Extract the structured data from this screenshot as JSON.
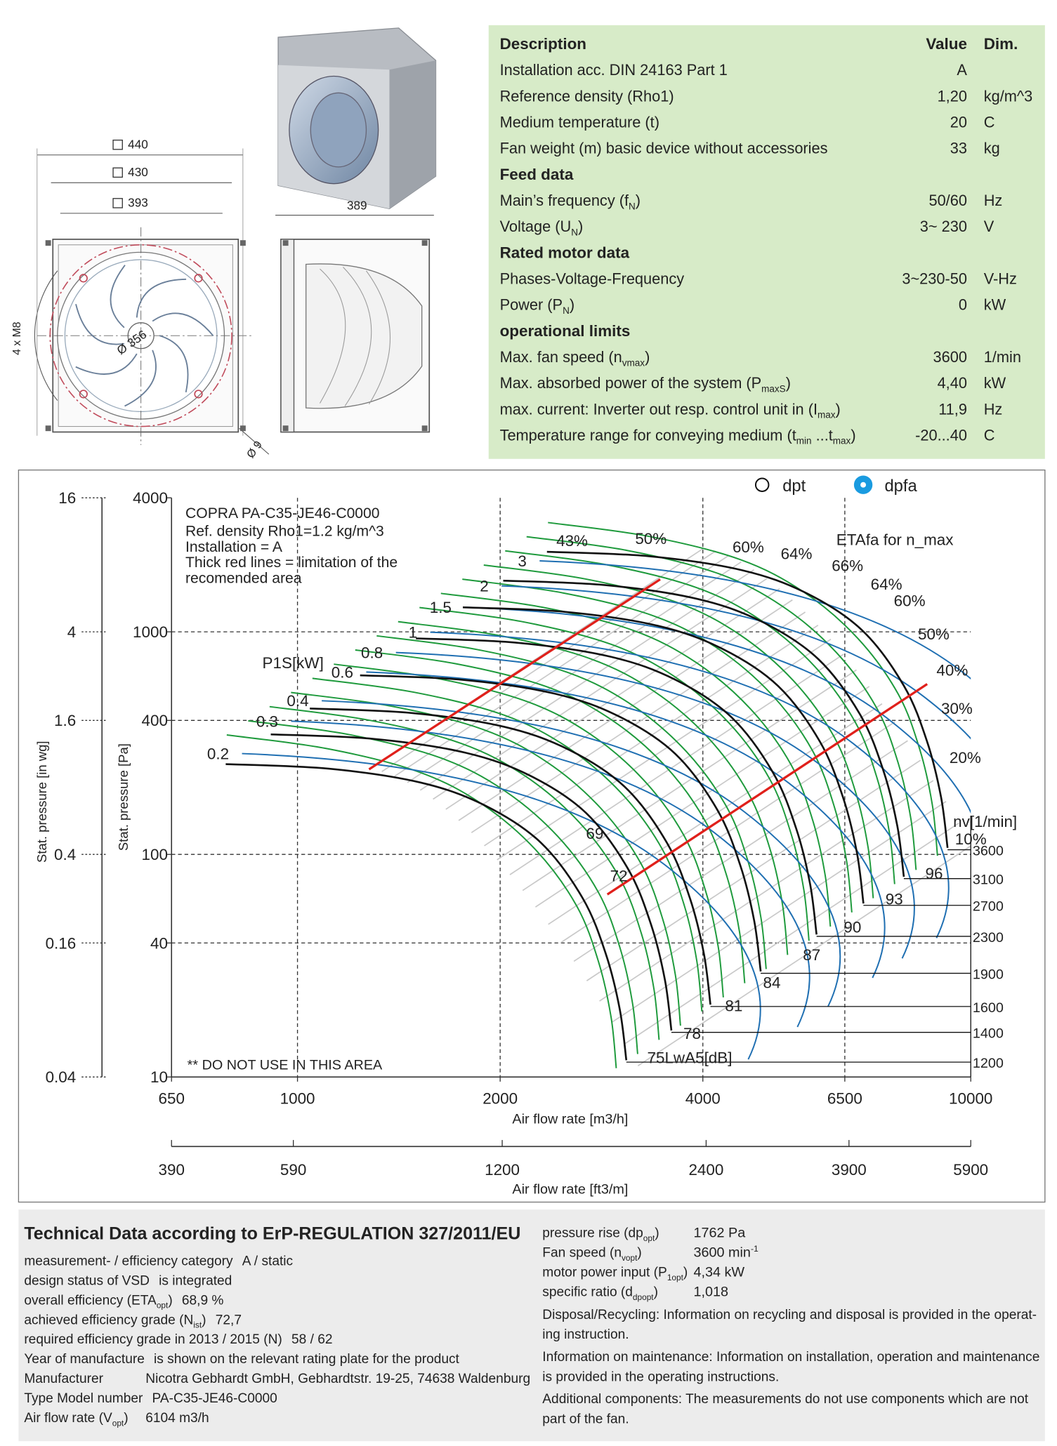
{
  "drawing": {
    "widths": [
      "440",
      "430",
      "393"
    ],
    "bore": "Ø 356",
    "thread": "4 x M8",
    "depth": "389",
    "hole": "Ø 9"
  },
  "specs": {
    "headers": [
      "Description",
      "Value",
      "Dim."
    ],
    "rows": [
      {
        "label": [
          "Installation acc. DIN 24163 Part 1"
        ],
        "value": "A"
      },
      {
        "label": [
          "Reference density (Rho1)"
        ],
        "value": "1,20",
        "dim": "kg/m^3"
      },
      {
        "label": [
          "Medium temperature (t)"
        ],
        "value": "20",
        "dim": "C"
      },
      {
        "label": [
          "Fan weight (m) basic device without accessories"
        ],
        "value": "33",
        "dim": "kg"
      },
      {
        "section": "Feed data"
      },
      {
        "label": [
          "Main’s frequency (f",
          "N",
          ")"
        ],
        "value": "50/60",
        "dim": "Hz"
      },
      {
        "label": [
          "Voltage (U",
          "N",
          ")"
        ],
        "value": "3~ 230",
        "dim": "V"
      },
      {
        "section": "Rated motor data"
      },
      {
        "label": [
          "Phases-Voltage-Frequency"
        ],
        "value": "3~230-50",
        "dim": "V-Hz"
      },
      {
        "label": [
          "Power (P",
          "N",
          ")"
        ],
        "value": "0",
        "dim": "kW"
      },
      {
        "section": "operational limits"
      },
      {
        "label": [
          "Max. fan speed (n",
          "vmax",
          ")"
        ],
        "value": "3600",
        "dim": "1/min"
      },
      {
        "label": [
          "Max. absorbed power of the system (P",
          "maxS",
          ")"
        ],
        "value": "4,40",
        "dim": "kW"
      },
      {
        "label": [
          "max. current: Inverter out resp. control unit in (I",
          "max",
          ")"
        ],
        "value": "11,9",
        "dim": "Hz"
      },
      {
        "label": [
          "Temperature range for conveying medium (t",
          "min",
          " ...t",
          "max",
          ")"
        ],
        "value": "-20...40",
        "dim": "C"
      }
    ]
  },
  "chart_data": {
    "type": "line",
    "title": "COPRA PA-C35-JE46-C0000",
    "notes": [
      "Ref. density Rho1=1.2 kg/m^3",
      "Installation = A",
      "Thick red lines = limitation of the",
      "recomended area"
    ],
    "warning": "** DO NOT USE IN THIS AREA",
    "legend": [
      "dpt",
      "dpfa"
    ],
    "xlabel": "Air flow rate [m3/h]",
    "x2label": "Air flow rate [ft3/m]",
    "ylabel": "Stat. pressure [Pa]",
    "y2label": "Stat. pressure [in wg]",
    "log_scale": true,
    "grid": true,
    "xlim": [
      650,
      10000
    ],
    "xticks": [
      650,
      1000,
      2000,
      4000,
      6500,
      10000
    ],
    "x2lim": [
      390,
      5900
    ],
    "x2ticks": [
      390,
      590,
      1200,
      2400,
      3900,
      5900
    ],
    "ylim": [
      10,
      4000
    ],
    "yticks": [
      10,
      40,
      100,
      400,
      1000,
      4000
    ],
    "y2lim": [
      0.04,
      16
    ],
    "y2ticks": [
      0.04,
      0.16,
      0.4,
      1.6,
      4,
      16
    ],
    "speed_label": "nv[1/min]",
    "speeds": [
      3600,
      3100,
      2700,
      2300,
      1900,
      1600,
      1400,
      1200
    ],
    "max_speed_curve": {
      "flow": [
        2347,
        3328,
        4569,
        5705,
        6899,
        7959,
        8613,
        9033,
        9237
      ],
      "pressure": [
        2290,
        2186,
        1893,
        1490,
        1015,
        571,
        321,
        181,
        107
      ]
    },
    "power_label": "P1S[kW]",
    "power": [
      0.2,
      0.3,
      0.4,
      0.6,
      0.8,
      1,
      1.5,
      2,
      3
    ],
    "noise_unit": "LwA5[dB]",
    "noise": [
      69,
      72,
      75,
      78,
      81,
      84,
      87,
      90,
      93,
      96
    ],
    "efficiency_label": "ETAfa for n_max",
    "efficiency": [
      43,
      50,
      60,
      64,
      66,
      64,
      60,
      50,
      40,
      30,
      20,
      10
    ],
    "efficiency_value_labels": [
      "43%",
      "50%",
      "60%",
      "64%",
      "66%",
      "64%",
      "60%",
      "50%",
      "40%",
      "30%",
      "20%",
      "10%"
    ]
  },
  "erp": {
    "title": "Technical Data according to ErP-REGULATION 327/2011/EU",
    "left": [
      {
        "label": [
          "measurement- / efficiency category"
        ],
        "value": "A / static"
      },
      {
        "label": [
          "design status of VSD"
        ],
        "value": "is integrated"
      },
      {
        "label": [
          "overall efficiency (ETA",
          "opt",
          ")"
        ],
        "value": "68,9 %"
      },
      {
        "label": [
          "achieved efficiency grade (N",
          "ist",
          ")"
        ],
        "value": "72,7"
      },
      {
        "label": [
          "required efficiency grade in 2013 / 2015 (N)"
        ],
        "value": "58 / 62"
      },
      {
        "label": [
          "Year of manufacture"
        ],
        "value": "is shown on the relevant rating plate for the product"
      },
      {
        "label": [
          "Manufacturer"
        ],
        "value": "Nicotra Gebhardt GmbH, Gebhardtstr. 19-25, 74638 Waldenburg"
      },
      {
        "label": [
          "Type Model number"
        ],
        "value": "PA-C35-JE46-C0000"
      },
      {
        "label": [
          "Air flow rate (V",
          "opt",
          ")"
        ],
        "value": "6104 m3/h"
      }
    ],
    "right": [
      {
        "label": [
          "pressure rise (dp",
          "opt",
          ")"
        ],
        "value": [
          "1762 Pa"
        ]
      },
      {
        "label": [
          "Fan speed (n",
          "vopt",
          ")"
        ],
        "value": [
          "3600 min",
          "-1"
        ]
      },
      {
        "label": [
          "motor power input (P",
          "1opt",
          ")"
        ],
        "value": [
          "4,34 kW"
        ]
      },
      {
        "label": [
          "specific ratio (d",
          "dpopt",
          ")"
        ],
        "value": [
          "1,018"
        ]
      }
    ],
    "notes": [
      [
        "Disposal/Recycling: Information on recycling and disposal is provided in the operat-",
        "ing instruction."
      ],
      [
        "Information on maintenance: Information on installation, operation and maintenance",
        "is provided in the operating instructions."
      ],
      [
        "Additional components: The measurements do not use components which are not",
        "part of the fan."
      ]
    ]
  }
}
